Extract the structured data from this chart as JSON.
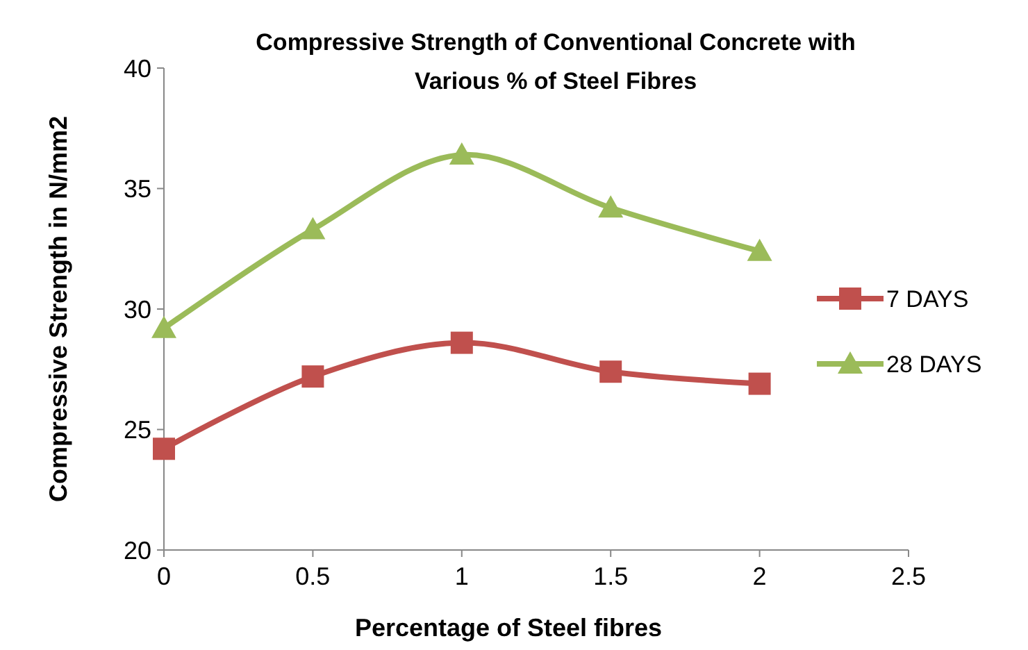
{
  "chart_data": {
    "type": "line",
    "title": "Compressive Strength of Conventional Concrete with Various % of  Steel  Fibres",
    "xlabel": "Percentage of Steel fibres",
    "ylabel": "Compressive Strength in  N/mm2",
    "x": [
      0,
      0.5,
      1,
      1.5,
      2
    ],
    "series": [
      {
        "name": "7 DAYS",
        "color": "#c0504d",
        "marker": "square",
        "values": [
          24.2,
          27.2,
          28.6,
          27.4,
          26.9
        ]
      },
      {
        "name": "28 DAYS",
        "color": "#9bbb59",
        "marker": "triangle",
        "values": [
          29.2,
          33.3,
          36.4,
          34.2,
          32.4
        ]
      }
    ],
    "xlim": [
      0,
      2.5
    ],
    "xticks": [
      0,
      0.5,
      1,
      1.5,
      2,
      2.5
    ],
    "ylim": [
      20,
      40
    ],
    "yticks": [
      20,
      25,
      30,
      35,
      40
    ],
    "grid": false,
    "legend": "right",
    "line_style": "solid"
  }
}
